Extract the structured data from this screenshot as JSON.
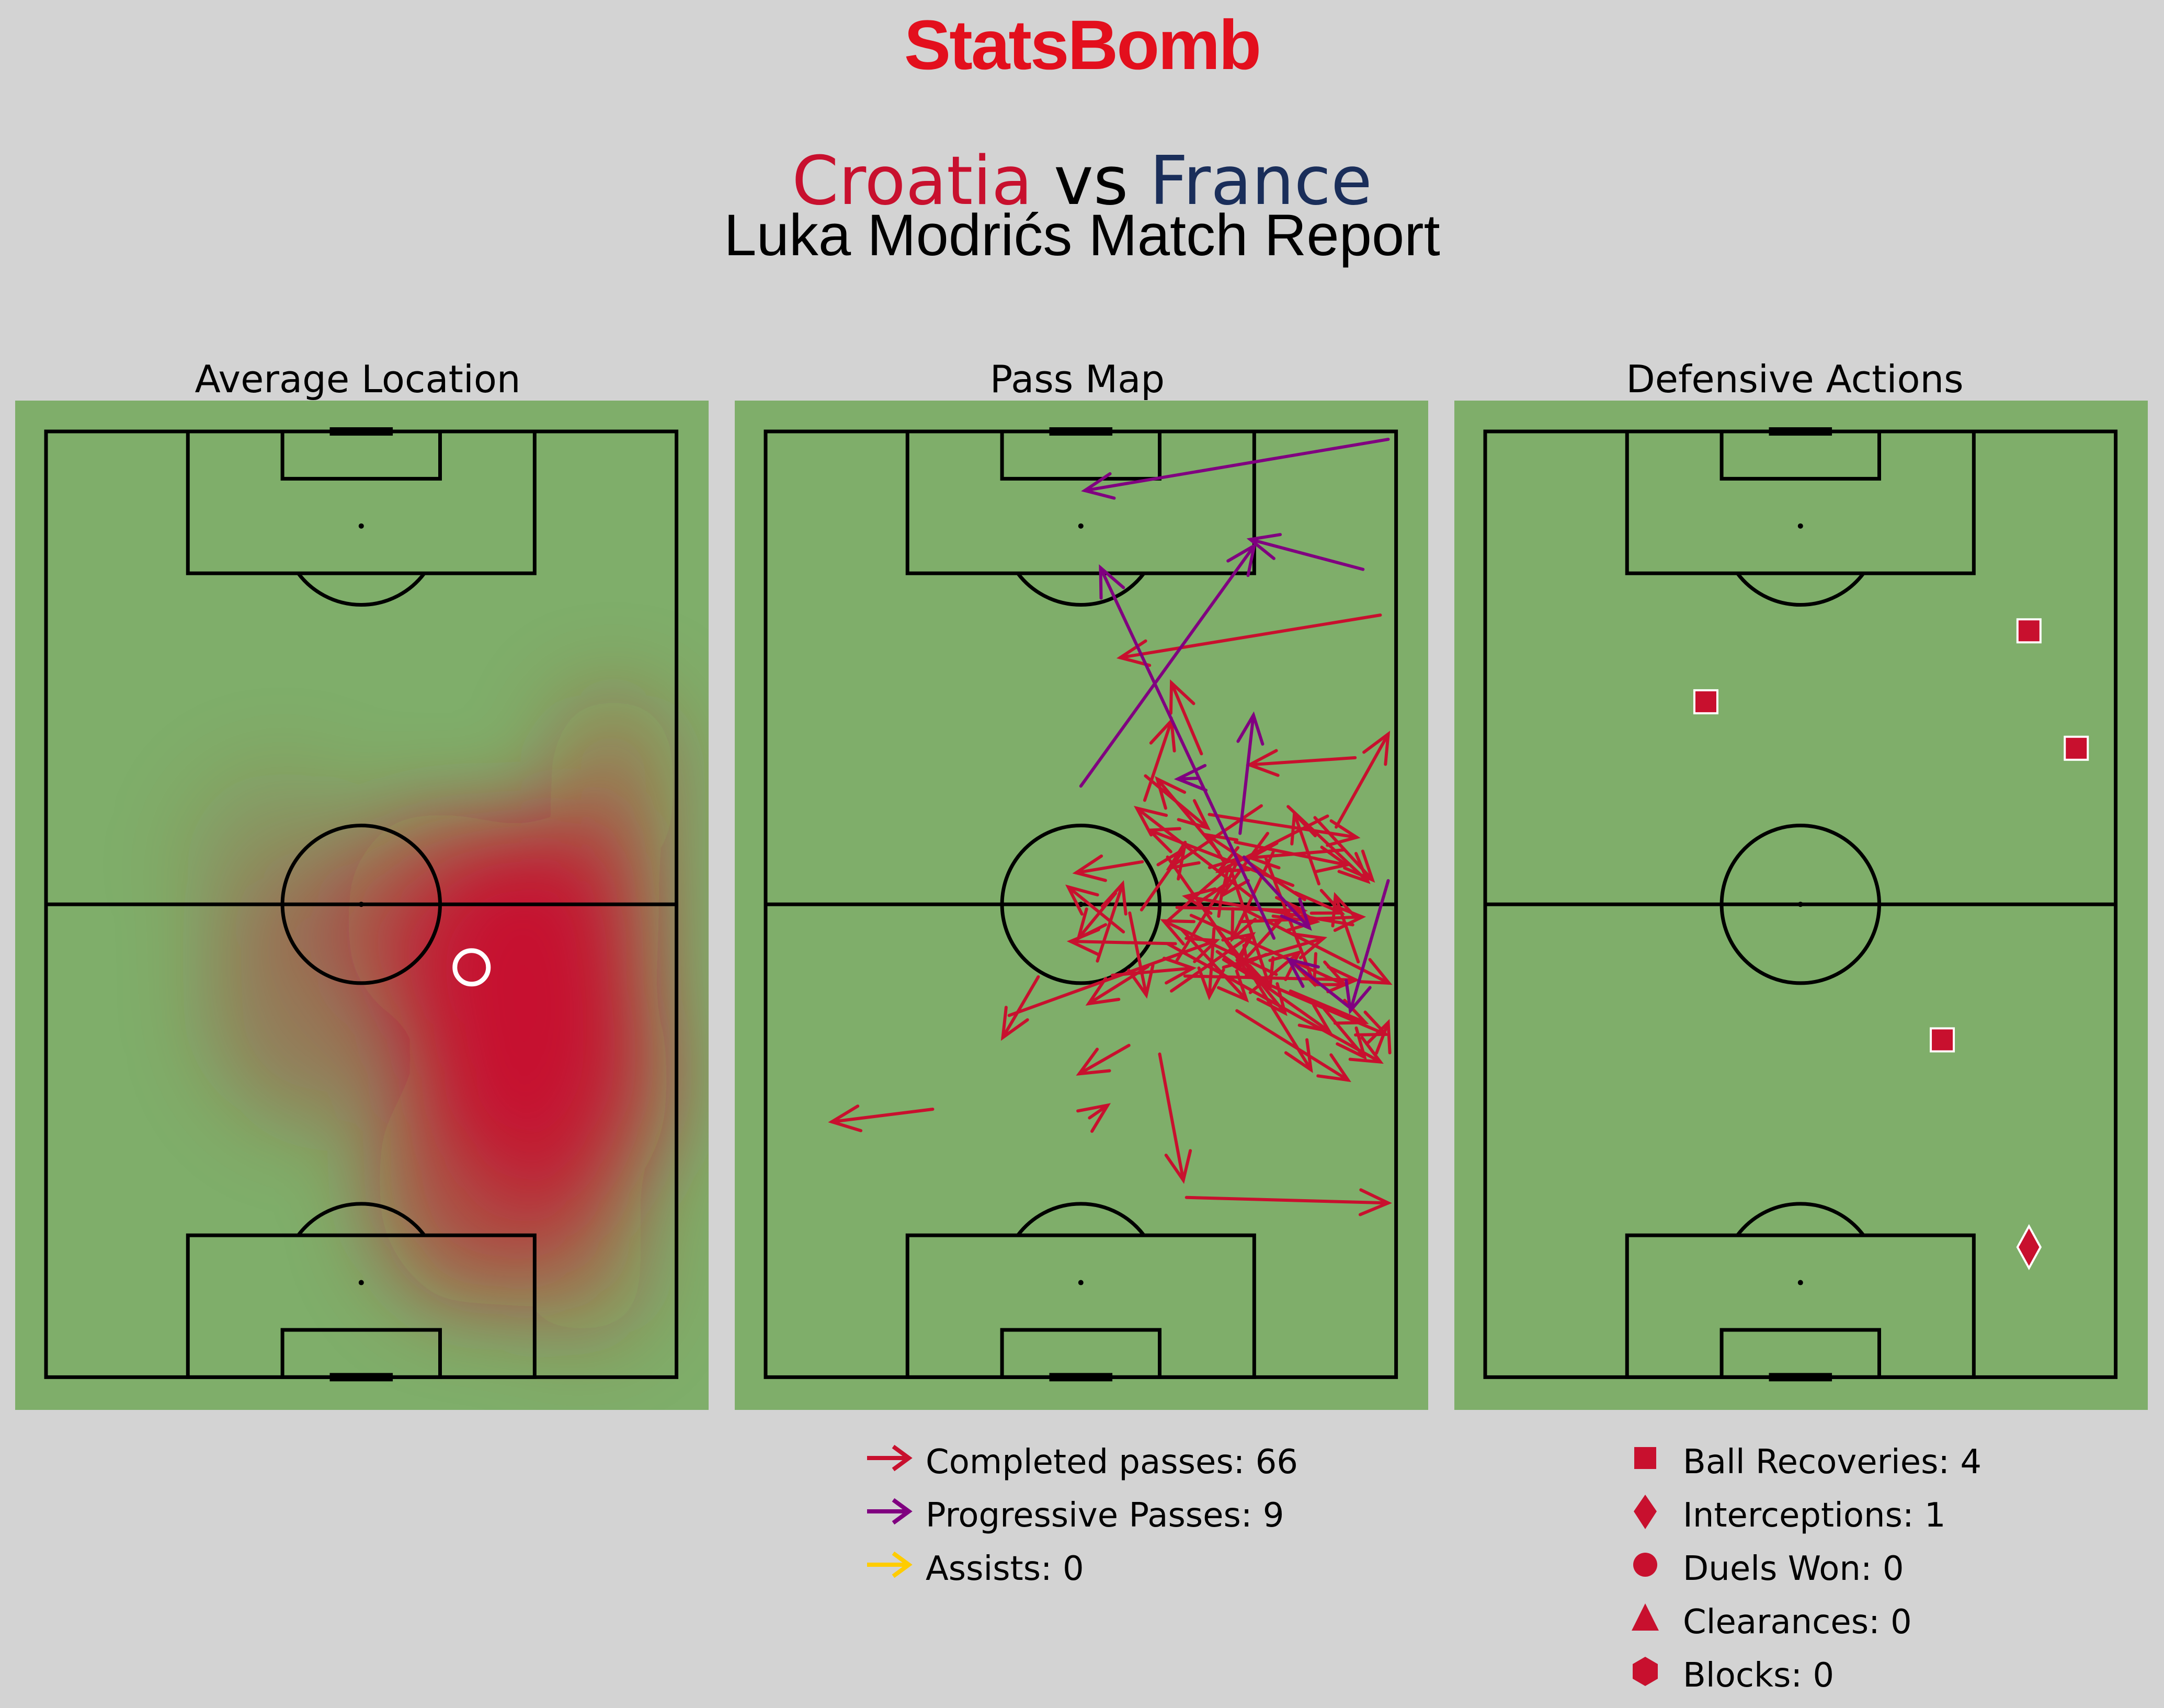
{
  "logo": "StatsBomb",
  "title": {
    "home_team": "Croatia",
    "vs": "vs",
    "away_team": "France",
    "subtitle": "Luka Modrićs Match Report",
    "home_color": "#c8102e",
    "away_color": "#1a2e5a"
  },
  "panels": {
    "avg_location": "Average Location",
    "pass_map": "Pass Map",
    "defensive": "Defensive Actions"
  },
  "colors": {
    "pitch": "#7fae6a",
    "line": "#000000",
    "completed": "#c8102e",
    "progressive": "#800080",
    "assist": "#ffcc00",
    "defensive": "#c8102e"
  },
  "pass_legend": [
    {
      "label": "Completed passes: 66",
      "icon": "arrow-icon",
      "color": "#c8102e"
    },
    {
      "label": "Progressive Passes: 9",
      "icon": "arrow-icon",
      "color": "#800080"
    },
    {
      "label": "Assists: 0",
      "icon": "arrow-icon",
      "color": "#ffcc00"
    }
  ],
  "defensive_legend": [
    {
      "label": "Ball Recoveries: 4",
      "icon": "square-icon"
    },
    {
      "label": "Interceptions: 1",
      "icon": "diamond-icon"
    },
    {
      "label": "Duels Won: 0",
      "icon": "circle-icon"
    },
    {
      "label": "Clearances: 0",
      "icon": "triangle-icon"
    },
    {
      "label": "Blocks: 0",
      "icon": "hexagon-icon"
    }
  ],
  "chart_data": [
    {
      "type": "heatmap",
      "title": "Average Location",
      "pitch": "statsbomb vertical, attacking top",
      "xlim": [
        0,
        80
      ],
      "ylim": [
        0,
        120
      ],
      "average_location": {
        "x": 54,
        "y": 68
      },
      "density_peak": {
        "x": 60,
        "y": 73
      }
    },
    {
      "type": "scatter",
      "title": "Pass Map",
      "xlim": [
        0,
        80
      ],
      "ylim": [
        0,
        120
      ],
      "completed_passes": [
        [
          21.2,
          86.0,
          8.4,
          87.6
        ],
        [
          78.0,
          23.3,
          45.0,
          28.7
        ],
        [
          61.0,
          69.0,
          78.7,
          76.5
        ],
        [
          51.0,
          65.0,
          78.0,
          80.0
        ],
        [
          60.4,
          60.5,
          79.1,
          70.0
        ],
        [
          46.1,
          77.9,
          39.8,
          81.5
        ],
        [
          44.0,
          69.0,
          54.2,
          68.1
        ],
        [
          30.9,
          74.1,
          57.2,
          64.6
        ],
        [
          71.3,
          48.8,
          57.5,
          55.8
        ],
        [
          42.1,
          67.2,
          45.3,
          57.4
        ],
        [
          48.5,
          67.9,
          41.0,
          72.6
        ],
        [
          62.9,
          47.5,
          51.2,
          55.4
        ],
        [
          44.4,
          58.6,
          39.7,
          64.3
        ],
        [
          74.5,
          62.6,
          53.3,
          59.0
        ],
        [
          57.5,
          53.4,
          49.7,
          44.1
        ],
        [
          34.6,
          69.2,
          30.1,
          76.9
        ],
        [
          51.0,
          54.0,
          61.4,
          69.0
        ],
        [
          69.7,
          49.0,
          77.0,
          56.9
        ],
        [
          57.3,
          66.0,
          71.5,
          76.1
        ],
        [
          63.5,
          54.2,
          69.6,
          70.1
        ],
        [
          61.7,
          59.1,
          47.1,
          47.8
        ],
        [
          52.8,
          63.2,
          61.0,
          72.1
        ],
        [
          64.4,
          53.4,
          59.2,
          64.4
        ],
        [
          54.0,
          61.4,
          73.5,
          70.2
        ],
        [
          59.6,
          52.1,
          73.7,
          55.0
        ],
        [
          48.1,
          46.8,
          51.5,
          36.7
        ],
        [
          47.7,
          60.7,
          53.1,
          53.0
        ],
        [
          68.4,
          59.4,
          56.0,
          51.2
        ],
        [
          63.7,
          51.0,
          57.9,
          58.9
        ],
        [
          59.8,
          73.5,
          73.9,
          82.3
        ],
        [
          66.9,
          57.6,
          48.7,
          50.6
        ],
        [
          75.2,
          67.3,
          72.3,
          58.9
        ],
        [
          66.6,
          71.0,
          76.1,
          75.0
        ],
        [
          59.0,
          55.5,
          64.0,
          70.6
        ],
        [
          52.2,
          67.1,
          58.0,
          57.7
        ],
        [
          70.9,
          73.3,
          76.0,
          79.4
        ],
        [
          46.2,
          61.1,
          48.3,
          71.5
        ],
        [
          56.9,
          62.6,
          65.9,
          73.8
        ],
        [
          45.4,
          63.5,
          38.4,
          57.8
        ],
        [
          48.2,
          43.7,
          56.1,
          50.3
        ],
        [
          52.2,
          60.4,
          68.3,
          60.8
        ],
        [
          50.0,
          79.0,
          53.0,
          95.0
        ],
        [
          56.3,
          48.6,
          75.0,
          51.5
        ],
        [
          56.9,
          63.1,
          56.3,
          71.7
        ],
        [
          50.9,
          62.2,
          60.0,
          54.2
        ],
        [
          61.4,
          68.4,
          69.2,
          81.0
        ],
        [
          66.4,
          60.9,
          60.0,
          67.9
        ],
        [
          67.2,
          58.5,
          73.1,
          61.1
        ],
        [
          55.3,
          40.9,
          51.5,
          31.9
        ],
        [
          64.4,
          61.5,
          69.9,
          62.2
        ],
        [
          61.5,
          71.2,
          67.7,
          66.1
        ],
        [
          51.5,
          71.0,
          61.8,
          63.8
        ],
        [
          52.0,
          65.0,
          38.7,
          64.7
        ],
        [
          58.1,
          68.0,
          70.8,
          64.3
        ],
        [
          53.2,
          69.1,
          74.9,
          69.6
        ],
        [
          64.8,
          68.9,
          50.5,
          62.1
        ],
        [
          60.2,
          62.2,
          75.7,
          61.6
        ],
        [
          47.8,
          54.6,
          39.4,
          56.0
        ],
        [
          73.3,
          53.1,
          61.5,
          54.1
        ],
        [
          66.3,
          47.6,
          76.4,
          57.1
        ],
        [
          70.2,
          57.4,
          67.1,
          48.5
        ],
        [
          41.1,
          87.1,
          43.4,
          85.5
        ],
        [
          74.8,
          41.4,
          61.4,
          42.3
        ],
        [
          53.4,
          97.2,
          79.0,
          97.9
        ],
        [
          72.4,
          50.2,
          79.0,
          38.4
        ],
        [
          77.5,
          78.9,
          79.0,
          75.0
        ]
      ],
      "progressive_passes": [
        [
          75.8,
          17.5,
          61.5,
          13.7
        ],
        [
          79.0,
          1.0,
          40.5,
          7.5
        ],
        [
          64.5,
          64.3,
          42.5,
          17.3
        ],
        [
          74.0,
          73.0,
          66.4,
          67.0
        ],
        [
          54.8,
          44.0,
          52.3,
          44.1
        ],
        [
          60.2,
          51.0,
          61.9,
          36.0
        ],
        [
          60.7,
          54.0,
          69.0,
          63.0
        ],
        [
          79.0,
          57.0,
          74.2,
          73.5
        ],
        [
          40.0,
          45.0,
          62.0,
          14.5
        ]
      ],
      "assists": []
    },
    {
      "type": "scatter",
      "title": "Defensive Actions",
      "xlim": [
        0,
        80
      ],
      "ylim": [
        0,
        120
      ],
      "ball_recoveries": [
        [
          69,
          25.3
        ],
        [
          28,
          34.3
        ],
        [
          75,
          40.2
        ],
        [
          58,
          77.2
        ]
      ],
      "interceptions": [
        [
          69,
          103.5
        ]
      ],
      "duels_won": [],
      "clearances": [],
      "blocks": []
    }
  ]
}
